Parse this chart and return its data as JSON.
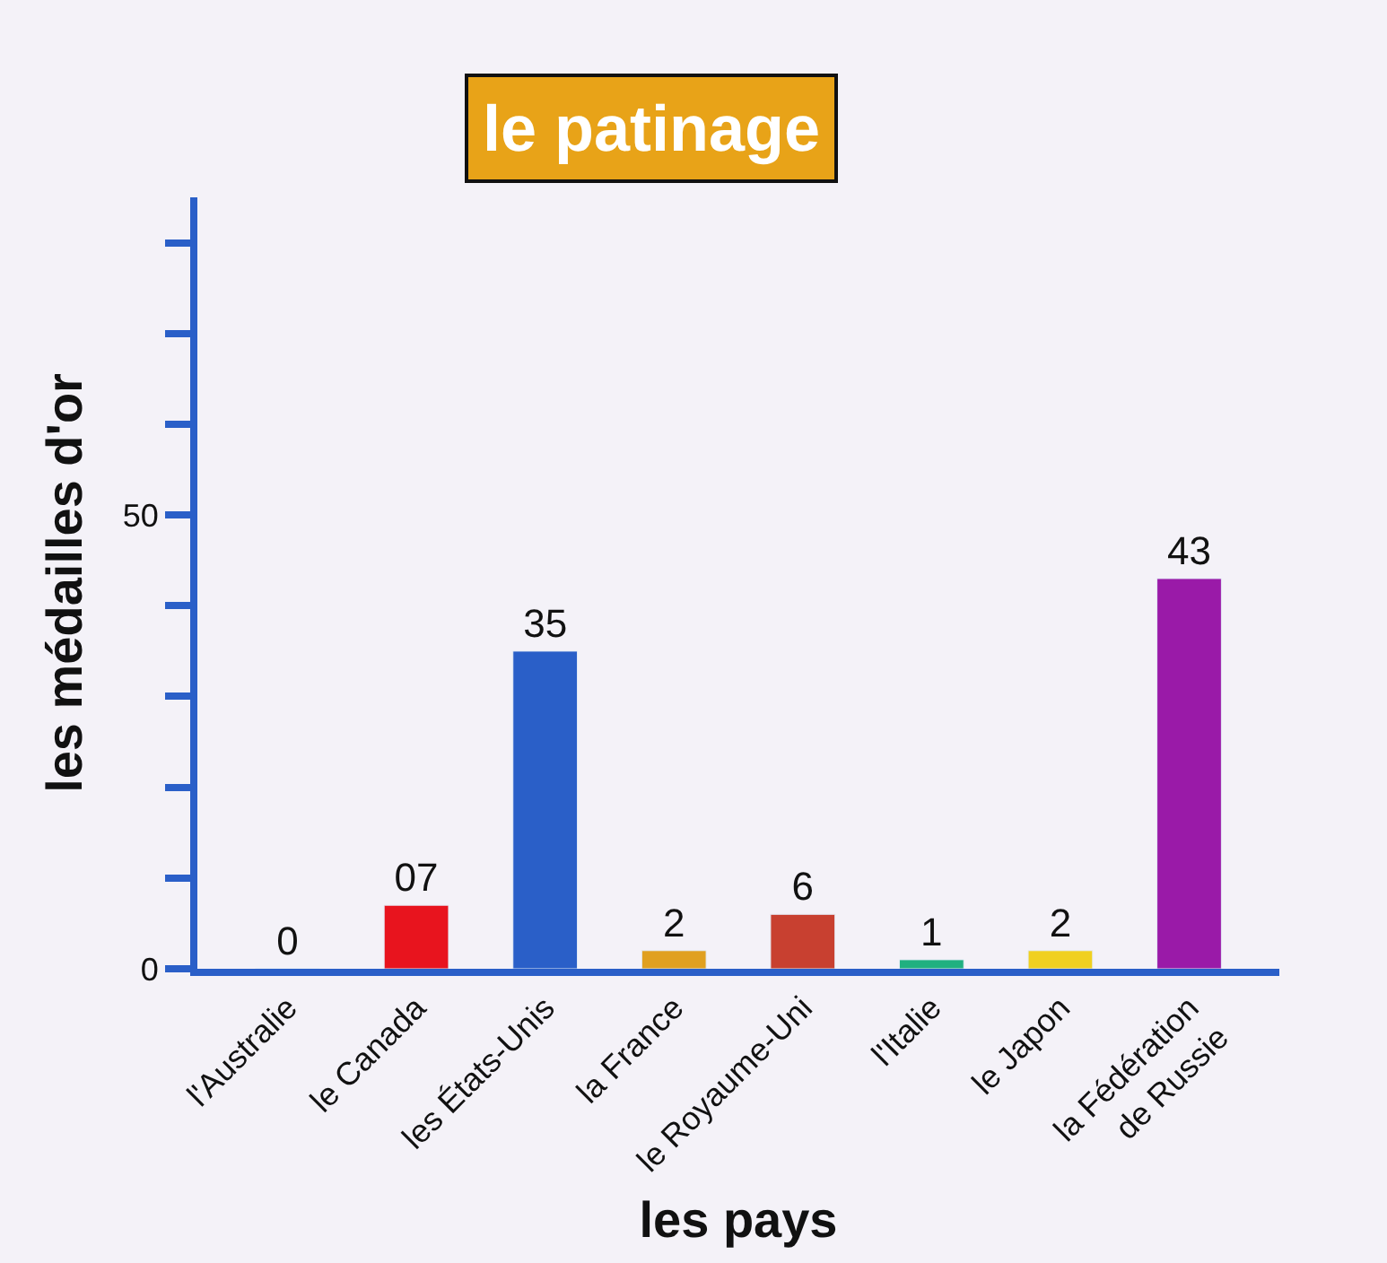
{
  "chart_data": {
    "type": "bar",
    "title": "le patinage",
    "xlabel": "les pays",
    "ylabel": "les médailles d'or",
    "categories": [
      "l'Australie",
      "le Canada",
      "les États-Unis",
      "la France",
      "le Royaume-Uni",
      "l'Italie",
      "le Japon",
      "la Fédération\nde Russie"
    ],
    "values": [
      0,
      7,
      35,
      2,
      6,
      1,
      2,
      43
    ],
    "colors": [
      null,
      "#e8141e",
      "#2a5fc8",
      "#e0a020",
      "#c84030",
      "#20b080",
      "#f0d020",
      "#9a1aa8"
    ],
    "value_labels": [
      "0",
      "07",
      "35",
      "2",
      "6",
      "1",
      "2",
      "43"
    ],
    "ylim": [
      0,
      85
    ],
    "yticks": [
      0,
      {
        "value": 10,
        "label": null
      },
      {
        "value": 20,
        "label": null
      },
      {
        "value": 30,
        "label": null
      },
      {
        "value": 40,
        "label": null
      },
      50,
      {
        "value": 60,
        "label": null
      },
      {
        "value": 70,
        "label": null
      },
      {
        "value": 80,
        "label": null
      }
    ],
    "grid": false
  }
}
